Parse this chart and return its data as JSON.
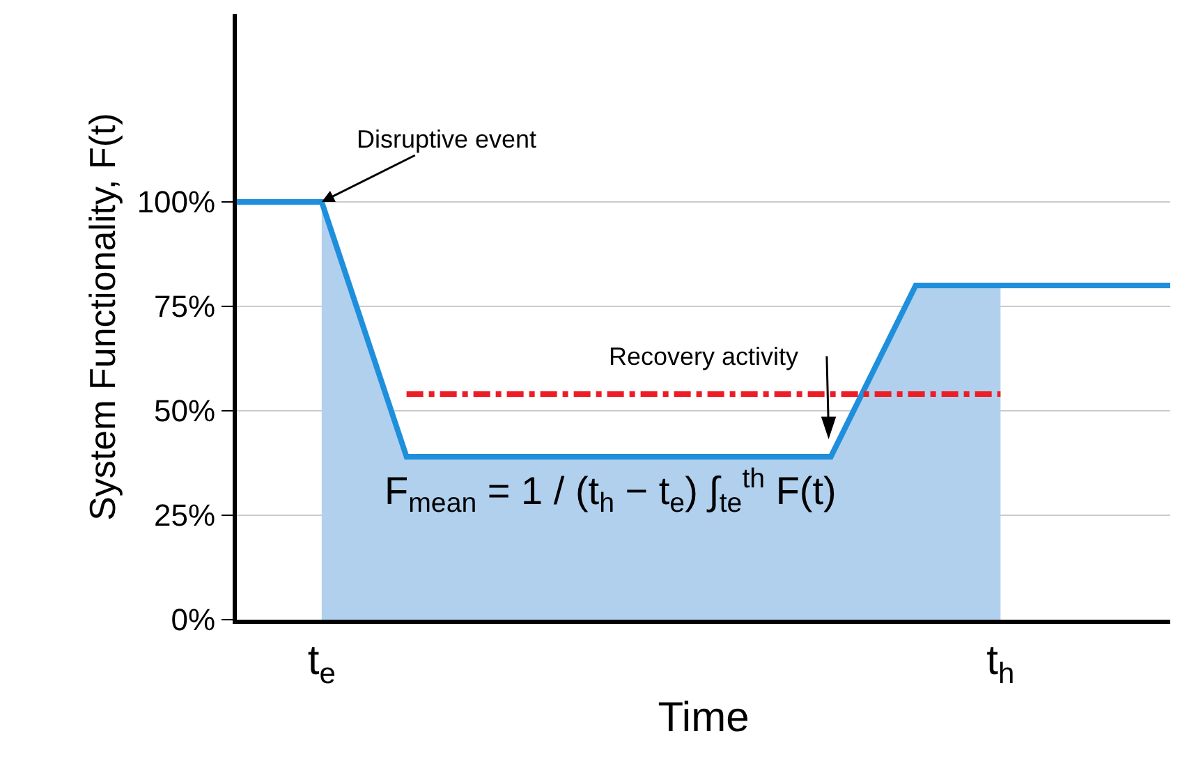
{
  "chart_data": {
    "type": "line",
    "xlabel": "Time",
    "ylabel": "System Functionality, F(t)",
    "categories": [
      null,
      "t$_{e}$",
      null,
      null,
      null,
      null,
      null,
      null,
      null,
      "t$_{h}$",
      null,
      null
    ],
    "ylim": [
      0,
      145
    ],
    "yticks": [
      {
        "value": 0,
        "label": "0%"
      },
      {
        "value": 25,
        "label": "25%"
      },
      {
        "value": 50,
        "label": "50%"
      },
      {
        "value": 75,
        "label": "75%"
      },
      {
        "value": 100,
        "label": "100%"
      }
    ],
    "grid": "y",
    "marker": "none",
    "series": [
      {
        "type": "area",
        "color": "#b0d0ee",
        "values": [
          null,
          100,
          39,
          39,
          39,
          39,
          39,
          39,
          80,
          80,
          null,
          null
        ]
      },
      {
        "color": "#1f8fdc",
        "line_style": "solid",
        "values": [
          100,
          100,
          39,
          39,
          39,
          39,
          39,
          39,
          80,
          80,
          80,
          80
        ]
      },
      {
        "color": "#ee1c25",
        "line_style": "dashed",
        "values": [
          null,
          null,
          54,
          54,
          54,
          54,
          54,
          54,
          54,
          54,
          null,
          null
        ]
      }
    ],
    "annotations": [
      {
        "text": "Disruptive event",
        "x": "t$_{e}$",
        "y": 100
      },
      "Recovery activity",
      "F$_{mean}$ = 1 / (t$_{h}$ − t$_{e}$) ∫$_{te}$$^{th}$ F(t)"
    ]
  }
}
